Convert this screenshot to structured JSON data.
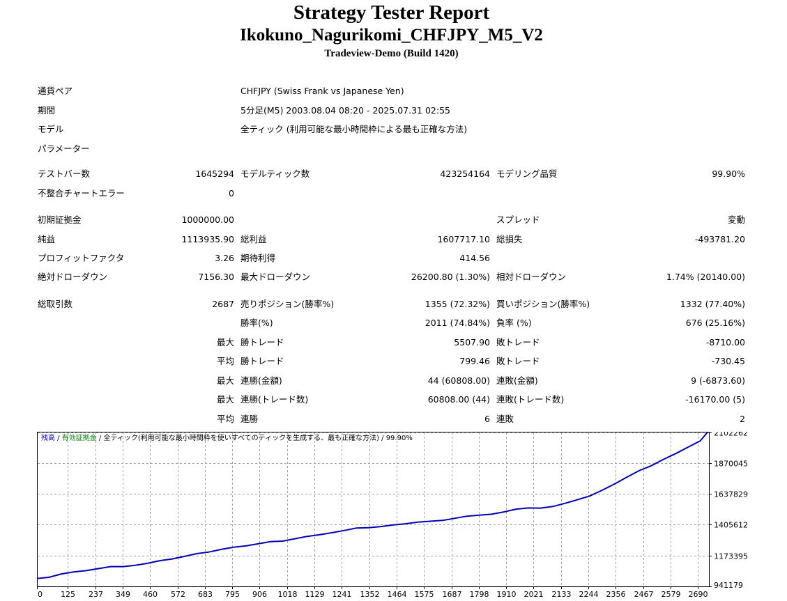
{
  "header": {
    "title": "Strategy Tester Report",
    "expert": "Ikokuno_Nagurikomi_CHFJPY_M5_V2",
    "server": "Tradeview-Demo (Build 1420)"
  },
  "info": {
    "symbol_label": "通貨ペア",
    "symbol_value": "CHFJPY (Swiss Frank vs Japanese Yen)",
    "period_label": "期間",
    "period_value": "5分足(M5) 2003.08.04 08:20 - 2025.07.31 02:55",
    "model_label": "モデル",
    "model_value": "全ティック (利用可能な最小時間枠による最も正確な方法)",
    "params_label": "パラメーター"
  },
  "stats": {
    "bars_label": "テストバー数",
    "bars_value": "1645294",
    "ticks_label": "モデルティック数",
    "ticks_value": "423254164",
    "quality_label": "モデリング品質",
    "quality_value": "99.90%",
    "mismatch_label": "不整合チャートエラー",
    "mismatch_value": "0",
    "deposit_label": "初期証拠金",
    "deposit_value": "1000000.00",
    "spread_label": "スプレッド",
    "spread_value": "変動",
    "net_label": "純益",
    "net_value": "1113935.90",
    "gross_profit_label": "総利益",
    "gross_profit_value": "1607717.10",
    "gross_loss_label": "総損失",
    "gross_loss_value": "-493781.20",
    "pf_label": "プロフィットファクタ",
    "pf_value": "3.26",
    "expected_label": "期待利得",
    "expected_value": "414.56",
    "abs_dd_label": "絶対ドローダウン",
    "abs_dd_value": "7156.30",
    "max_dd_label": "最大ドローダウン",
    "max_dd_value": "26200.80 (1.30%)",
    "rel_dd_label": "相対ドローダウン",
    "rel_dd_value": "1.74% (20140.00)",
    "trades_label": "総取引数",
    "trades_value": "2687",
    "short_label": "売りポジション(勝率%)",
    "short_value": "1355 (72.32%)",
    "long_label": "買いポジション(勝率%)",
    "long_value": "1332 (77.40%)",
    "win_label": "勝率(%)",
    "win_value": "2011 (74.84%)",
    "loss_label": "負率 (%)",
    "loss_value": "676 (25.16%)",
    "largest_label": "最大",
    "largest_win_label": "勝トレード",
    "largest_win_value": "5507.90",
    "largest_loss_label": "敗トレード",
    "largest_loss_value": "-8710.00",
    "average_label": "平均",
    "average_win_label": "勝トレード",
    "average_win_value": "799.46",
    "average_loss_label": "敗トレード",
    "average_loss_value": "-730.45",
    "max_consec_label": "最大",
    "max_consec_win_label": "連勝(金額)",
    "max_consec_win_value": "44 (60808.00)",
    "max_consec_loss_label": "連敗(金額)",
    "max_consec_loss_value": "9 (-6873.60)",
    "max_consec2_label": "最大",
    "max_consec_win2_label": "連勝(トレード数)",
    "max_consec_win2_value": "60808.00 (44)",
    "max_consec_loss2_label": "連敗(トレード数)",
    "max_consec_loss2_value": "-16170.00 (5)",
    "avg_consec_label": "平均",
    "avg_consec_win_label": "連勝",
    "avg_consec_win_value": "6",
    "avg_consec_loss_label": "連敗",
    "avg_consec_loss_value": "2"
  },
  "chart_header": {
    "balance": "残高",
    "sep1": " / ",
    "equity": "有効証拠金",
    "sep2": " / ",
    "rest": "全ティック(利用可能な最小時間枠を使いすべてのティックを生成する、最も正確な方法) / 99.90%"
  },
  "chart_data": {
    "type": "line",
    "title": "",
    "xlabel": "",
    "ylabel": "",
    "x_ticks": [
      0,
      125,
      237,
      349,
      460,
      572,
      683,
      795,
      906,
      1018,
      1129,
      1241,
      1352,
      1464,
      1575,
      1687,
      1798,
      1910,
      2021,
      2133,
      2244,
      2356,
      2467,
      2579,
      2690
    ],
    "y_ticks": [
      "941179",
      "1173395",
      "1405612",
      "1637829",
      "1870045",
      "2102262"
    ],
    "xlim": [
      0,
      2735
    ],
    "ylim": [
      941179,
      2106000
    ],
    "grid": true,
    "colors": {
      "balance": "#0000b4",
      "grid": "#a0a0a0",
      "background": "#ffffff"
    },
    "series": [
      {
        "name": "残高",
        "x": [
          0,
          50,
          100,
          150,
          200,
          250,
          300,
          350,
          400,
          450,
          500,
          550,
          600,
          650,
          700,
          750,
          800,
          850,
          900,
          950,
          1000,
          1050,
          1100,
          1150,
          1200,
          1250,
          1300,
          1350,
          1400,
          1450,
          1500,
          1550,
          1600,
          1650,
          1700,
          1750,
          1800,
          1850,
          1900,
          1950,
          2000,
          2050,
          2100,
          2150,
          2200,
          2250,
          2300,
          2350,
          2400,
          2450,
          2500,
          2550,
          2600,
          2650,
          2700,
          2735
        ],
        "y": [
          1000000,
          1010000,
          1035000,
          1050000,
          1060000,
          1075000,
          1090000,
          1090000,
          1100000,
          1115000,
          1135000,
          1148000,
          1167000,
          1188000,
          1200000,
          1220000,
          1236000,
          1246000,
          1262000,
          1278000,
          1282000,
          1300000,
          1318000,
          1330000,
          1345000,
          1362000,
          1381000,
          1383000,
          1392000,
          1404000,
          1413000,
          1425000,
          1432000,
          1438000,
          1454000,
          1470000,
          1478000,
          1485000,
          1502000,
          1523000,
          1532000,
          1531000,
          1543000,
          1567000,
          1594000,
          1622000,
          1665000,
          1712000,
          1763000,
          1812000,
          1850000,
          1898000,
          1942000,
          1990000,
          2038000,
          2115000
        ]
      }
    ]
  }
}
